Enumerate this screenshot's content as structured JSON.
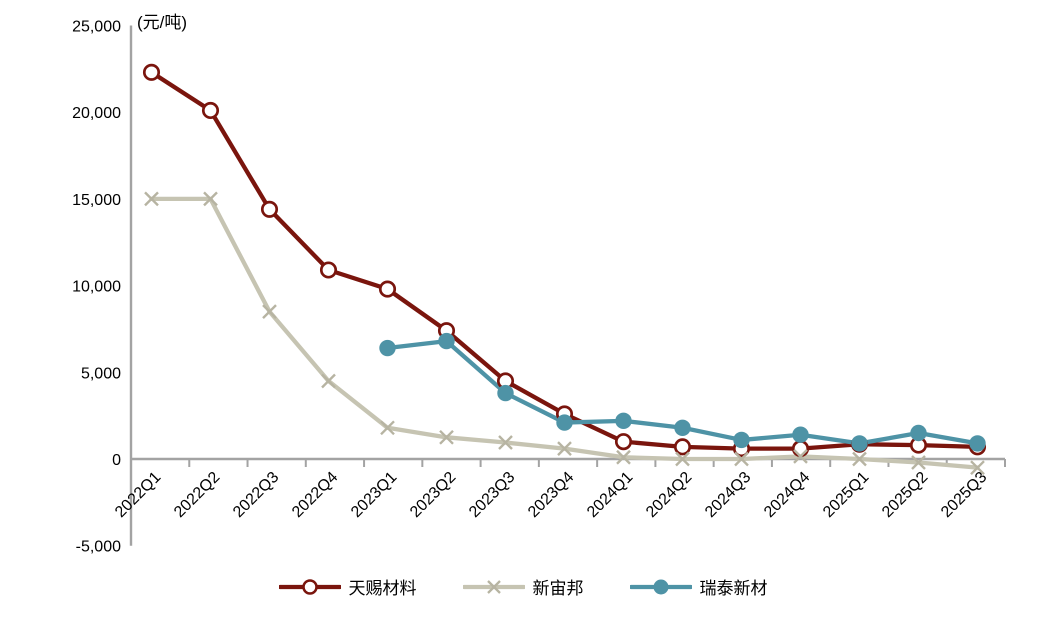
{
  "chart_data": {
    "type": "line",
    "unit_label": "(元/吨)",
    "categories": [
      "2022Q1",
      "2022Q2",
      "2022Q3",
      "2022Q4",
      "2023Q1",
      "2023Q2",
      "2023Q3",
      "2023Q4",
      "2024Q1",
      "2024Q2",
      "2024Q3",
      "2024Q4",
      "2025Q1",
      "2025Q2",
      "2025Q3"
    ],
    "series": [
      {
        "name": "天赐材料",
        "color": "#7a150d",
        "marker": "open-circle",
        "marker_color": "#7a150d",
        "values": [
          22300,
          20100,
          14400,
          10900,
          9800,
          7400,
          4500,
          2600,
          1000,
          700,
          600,
          600,
          850,
          800,
          700
        ]
      },
      {
        "name": "新宙邦",
        "color": "#c6c4b2",
        "marker": "x",
        "marker_color": "#b7b4a2",
        "values": [
          15000,
          15000,
          8500,
          4500,
          1800,
          1250,
          950,
          600,
          100,
          0,
          0,
          150,
          0,
          -200,
          -500
        ]
      },
      {
        "name": "瑞泰新材",
        "color": "#4e93a6",
        "marker": "filled-circle",
        "marker_color": "#4e93a6",
        "values": [
          null,
          null,
          null,
          null,
          6400,
          6800,
          3800,
          2100,
          2200,
          1800,
          1100,
          1400,
          900,
          1500,
          900
        ]
      }
    ],
    "y_axis": {
      "ticks": [
        {
          "label": "25,000",
          "value": 25000
        },
        {
          "label": "20,000",
          "value": 20000
        },
        {
          "label": "15,000",
          "value": 15000
        },
        {
          "label": "10,000",
          "value": 10000
        },
        {
          "label": "5,000",
          "value": 5000
        },
        {
          "label": "0",
          "value": 0
        },
        {
          "label": "-5,000",
          "value": -5000
        }
      ],
      "ylim": [
        -5000,
        25000
      ]
    },
    "grid": false,
    "legend_position": "bottom"
  }
}
